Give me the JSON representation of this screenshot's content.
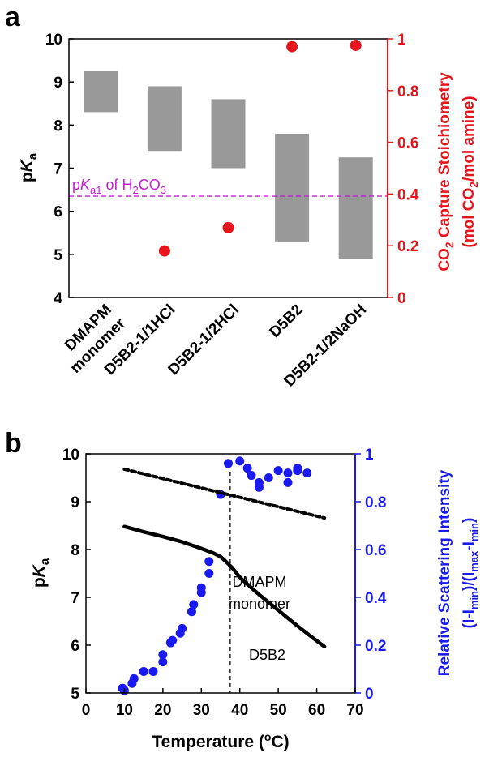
{
  "chart_data": [
    {
      "panel": "a",
      "type": "bar",
      "ylabel_left": "pKa",
      "ylabel_right_line1": "CO2 Capture Stoichiometry",
      "ylabel_right_line2": "(mol CO2/mol amine)",
      "ylim_left": [
        4,
        10
      ],
      "ylim_right": [
        0,
        1
      ],
      "yticks_left": [
        "4",
        "5",
        "6",
        "7",
        "8",
        "9",
        "10"
      ],
      "yticks_right": [
        "0",
        "0.2",
        "0.4",
        "0.6",
        "0.8",
        "1"
      ],
      "categories": [
        "DMAPM monomer",
        "D5B2-1/1HCl",
        "D5B2-1/2HCl",
        "D5B2",
        "D5B2-1/2NaOH"
      ],
      "category_labels": [
        [
          "DMAPM",
          "monomer"
        ],
        [
          "D5B2-1/1HCl"
        ],
        [
          "D5B2-1/2HCl"
        ],
        [
          "D5B2"
        ],
        [
          "D5B2-1/2NaOH"
        ]
      ],
      "pka_ranges": [
        {
          "low": 8.3,
          "high": 9.25
        },
        {
          "low": 7.4,
          "high": 8.9
        },
        {
          "low": 7.0,
          "high": 8.6
        },
        {
          "low": 5.3,
          "high": 7.8
        },
        {
          "low": 4.9,
          "high": 7.25
        }
      ],
      "co2_stoichiometry": [
        null,
        0.18,
        0.27,
        0.97,
        0.975
      ],
      "reference_line": {
        "value": 6.35,
        "label_prefix": "pK",
        "label_sub1": "a1",
        "label_mid": " of H",
        "label_sub2": "2",
        "label_mid2": "CO",
        "label_sub3": "3"
      },
      "colors": {
        "bars": "#999999",
        "points": "#e8141b",
        "reference": "#c020d0",
        "right_axis": "#e8141b"
      }
    },
    {
      "panel": "b",
      "type": "scatter",
      "xlabel": "Temperature (oC)",
      "ylabel_left": "pKa",
      "ylabel_right_line1": "Relative Scattering Intensity",
      "ylabel_right_line2": "(I-Imin)/(Imax-Imin)",
      "xlim": [
        0,
        70
      ],
      "ylim_left": [
        5,
        10
      ],
      "ylim_right": [
        0,
        1
      ],
      "xticks": [
        "0",
        "10",
        "20",
        "30",
        "40",
        "50",
        "60",
        "70"
      ],
      "yticks_left": [
        "5",
        "6",
        "7",
        "8",
        "9",
        "10"
      ],
      "yticks_right": [
        "0",
        "0.2",
        "0.4",
        "0.6",
        "0.8",
        "1"
      ],
      "transition_temperature": 37.5,
      "series": [
        {
          "name": "DMAPM monomer",
          "style": "dashed",
          "x": [
            10,
            62
          ],
          "y": [
            9.68,
            8.66
          ]
        },
        {
          "name": "D5B2",
          "style": "solid",
          "x": [
            10,
            15,
            20,
            25,
            30,
            33,
            35,
            36,
            37,
            38,
            39,
            40,
            42,
            45,
            50,
            55,
            60,
            62
          ],
          "y": [
            8.48,
            8.37,
            8.27,
            8.16,
            8.02,
            7.93,
            7.85,
            7.78,
            7.7,
            7.62,
            7.52,
            7.42,
            7.27,
            7.06,
            6.73,
            6.4,
            6.09,
            5.97
          ]
        }
      ],
      "scatter_intensity": {
        "x": [
          9.5,
          10,
          12,
          12.5,
          15,
          17.5,
          20,
          20,
          22,
          22.5,
          24.5,
          25,
          27.5,
          28,
          30,
          30,
          32,
          32,
          35,
          37,
          40,
          42,
          43,
          45,
          45,
          47.5,
          50,
          52.5,
          52.5,
          55,
          55,
          57.5
        ],
        "y": [
          0.02,
          0.01,
          0.04,
          0.06,
          0.09,
          0.09,
          0.13,
          0.16,
          0.21,
          0.22,
          0.25,
          0.27,
          0.34,
          0.37,
          0.42,
          0.44,
          0.5,
          0.55,
          0.83,
          0.96,
          0.97,
          0.94,
          0.91,
          0.88,
          0.86,
          0.9,
          0.93,
          0.92,
          0.88,
          0.94,
          0.93,
          0.92
        ]
      },
      "annotations": [
        {
          "line1": "DMAPM",
          "line2": "monomer"
        },
        {
          "line1": "D5B2"
        }
      ],
      "colors": {
        "lines": "#000000",
        "points": "#1a1aee",
        "right_axis": "#1a1aee"
      }
    }
  ]
}
